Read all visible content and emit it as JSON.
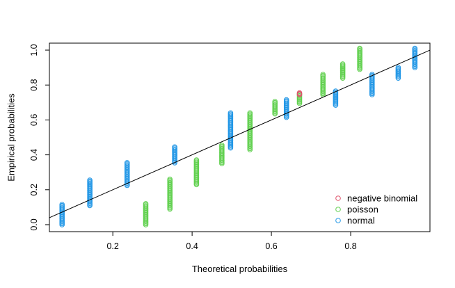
{
  "chart_data": {
    "type": "scatter",
    "title": "",
    "xlabel": "Theoretical probabilities",
    "ylabel": "Empirical probabilities",
    "xlim": [
      0.04,
      1.0
    ],
    "ylim": [
      -0.04,
      1.04
    ],
    "x_ticks": [
      0.2,
      0.4,
      0.6,
      0.8
    ],
    "x_tick_labels": [
      "0.2",
      "0.4",
      "0.6",
      "0.8"
    ],
    "y_ticks": [
      0.0,
      0.2,
      0.4,
      0.6,
      0.8,
      1.0
    ],
    "y_tick_labels": [
      "0.0",
      "0.2",
      "0.4",
      "0.6",
      "0.8",
      "1.0"
    ],
    "reference_line": {
      "intercept": 0,
      "slope": 1,
      "color": "#000000"
    },
    "legend": {
      "position": "bottom-right",
      "entries": [
        {
          "label": "negative binomial",
          "color": "#DF536B"
        },
        {
          "label": "poisson",
          "color": "#61D04F"
        },
        {
          "label": "normal",
          "color": "#2297E6"
        }
      ]
    },
    "series": [
      {
        "name": "normal",
        "color": "#2297E6",
        "groups": [
          {
            "x": 0.072,
            "y_min": 0.0,
            "y_max": 0.115
          },
          {
            "x": 0.142,
            "y_min": 0.11,
            "y_max": 0.255
          },
          {
            "x": 0.236,
            "y_min": 0.225,
            "y_max": 0.355
          },
          {
            "x": 0.356,
            "y_min": 0.355,
            "y_max": 0.445
          },
          {
            "x": 0.497,
            "y_min": 0.44,
            "y_max": 0.64
          },
          {
            "x": 0.638,
            "y_min": 0.615,
            "y_max": 0.715
          },
          {
            "x": 0.762,
            "y_min": 0.685,
            "y_max": 0.765
          },
          {
            "x": 0.854,
            "y_min": 0.745,
            "y_max": 0.86
          },
          {
            "x": 0.92,
            "y_min": 0.84,
            "y_max": 0.9
          },
          {
            "x": 0.962,
            "y_min": 0.9,
            "y_max": 1.01
          }
        ]
      },
      {
        "name": "poisson",
        "color": "#61D04F",
        "groups": [
          {
            "x": 0.283,
            "y_min": 0.0,
            "y_max": 0.12
          },
          {
            "x": 0.344,
            "y_min": 0.09,
            "y_max": 0.26
          },
          {
            "x": 0.411,
            "y_min": 0.23,
            "y_max": 0.37
          },
          {
            "x": 0.475,
            "y_min": 0.35,
            "y_max": 0.455
          },
          {
            "x": 0.546,
            "y_min": 0.43,
            "y_max": 0.64
          },
          {
            "x": 0.609,
            "y_min": 0.635,
            "y_max": 0.705
          },
          {
            "x": 0.671,
            "y_min": 0.695,
            "y_max": 0.75
          },
          {
            "x": 0.73,
            "y_min": 0.745,
            "y_max": 0.86
          },
          {
            "x": 0.78,
            "y_min": 0.84,
            "y_max": 0.92
          },
          {
            "x": 0.823,
            "y_min": 0.89,
            "y_max": 1.01
          }
        ]
      },
      {
        "name": "negative binomial",
        "color": "#DF536B",
        "groups": [
          {
            "x": 0.671,
            "y_min": 0.745,
            "y_max": 0.755
          }
        ]
      }
    ]
  }
}
